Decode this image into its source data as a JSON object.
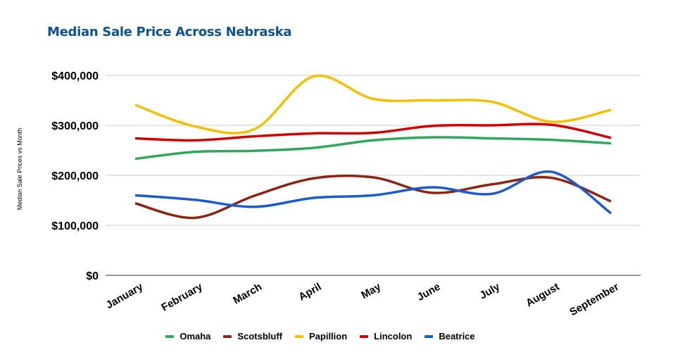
{
  "chart_data": {
    "type": "line",
    "title": "Median Sale Price Across Nebraska",
    "xlabel": "",
    "ylabel": "Median Sale Prices vs Month",
    "categories": [
      "January",
      "February",
      "March",
      "April",
      "May",
      "June",
      "July",
      "August",
      "September"
    ],
    "ylim": [
      0,
      400000
    ],
    "yticks": [
      0,
      100000,
      200000,
      300000,
      400000
    ],
    "ytick_labels": [
      "$0",
      "$100,000",
      "$200,000",
      "$300,000",
      "$400,000"
    ],
    "grid": true,
    "smooth": true,
    "legend_position": "bottom",
    "series": [
      {
        "name": "Omaha",
        "color": "#2ea85a",
        "values": [
          233000,
          247000,
          249000,
          255000,
          270000,
          276000,
          274000,
          271000,
          264000
        ]
      },
      {
        "name": "Scotsbluff",
        "color": "#8e2410",
        "values": [
          144000,
          115000,
          159000,
          194000,
          196000,
          165000,
          182000,
          195000,
          148000
        ]
      },
      {
        "name": "Papillion",
        "color": "#f6bf00",
        "values": [
          341000,
          298000,
          292000,
          398000,
          353000,
          350000,
          347000,
          307000,
          331000
        ]
      },
      {
        "name": "Lincolon",
        "color": "#d40000",
        "values": [
          274000,
          270000,
          278000,
          284000,
          285000,
          299000,
          300000,
          301000,
          275000
        ]
      },
      {
        "name": "Beatrice",
        "color": "#1a5bd0",
        "values": [
          160000,
          151000,
          137000,
          155000,
          160000,
          176000,
          163000,
          207000,
          124000
        ]
      }
    ]
  }
}
